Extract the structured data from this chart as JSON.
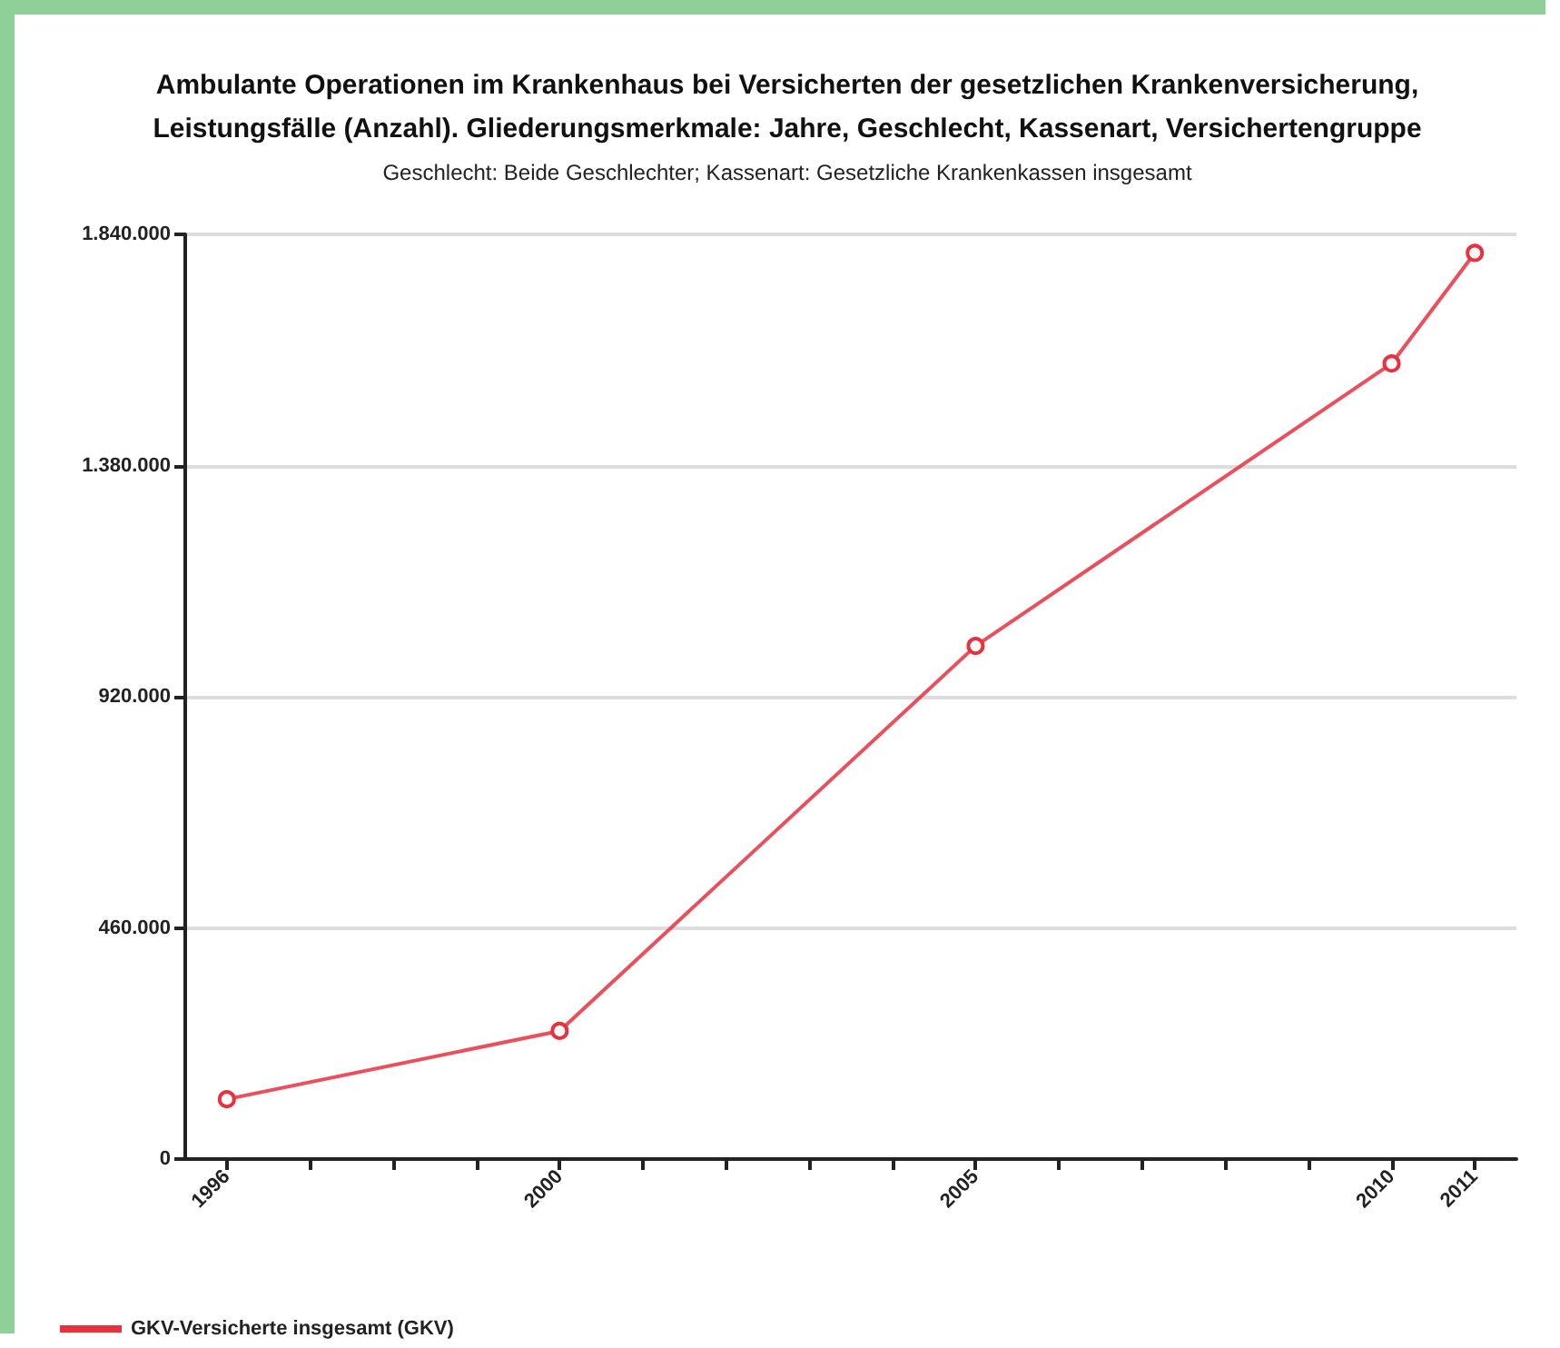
{
  "chart_data": {
    "type": "line",
    "title": "Ambulante Operationen im Krankenhaus bei Versicherten der gesetzlichen Krankenversicherung,\nLeistungsfälle (Anzahl). Gliederungsmerkmale: Jahre, Geschlecht, Kassenart, Versichertengruppe",
    "subtitle": "Geschlecht: Beide Geschlechter; Kassenart: Gesetzliche Krankenkassen insgesamt",
    "x": [
      1996,
      2000,
      2005,
      2010,
      2011
    ],
    "series": [
      {
        "name": "GKV-Versicherte insgesamt (GKV)",
        "color": "#e8303e",
        "values": [
          119000,
          255000,
          1021000,
          1583000,
          1803000
        ]
      }
    ],
    "xlim": [
      1995.5,
      2011.5
    ],
    "xticks": [
      1996,
      {
        "value": 1997,
        "label": null
      },
      {
        "value": 1998,
        "label": null
      },
      {
        "value": 1999,
        "label": null
      },
      2000,
      {
        "value": 2001,
        "label": null
      },
      {
        "value": 2002,
        "label": null
      },
      {
        "value": 2003,
        "label": null
      },
      {
        "value": 2004,
        "label": null
      },
      2005,
      {
        "value": 2006,
        "label": null
      },
      {
        "value": 2007,
        "label": null
      },
      {
        "value": 2008,
        "label": null
      },
      {
        "value": 2009,
        "label": null
      },
      2010,
      2011
    ],
    "ylim": [
      0,
      1840000
    ],
    "yticks": [
      0,
      {
        "value": 460000,
        "label": "460.000"
      },
      {
        "value": 920000,
        "label": "920.000"
      },
      {
        "value": 1380000,
        "label": "1.380.000"
      },
      {
        "value": 1840000,
        "label": "1.840.000"
      }
    ],
    "grid": "y",
    "legend": "bottom left",
    "marker": "circle",
    "line_style": "solid"
  }
}
